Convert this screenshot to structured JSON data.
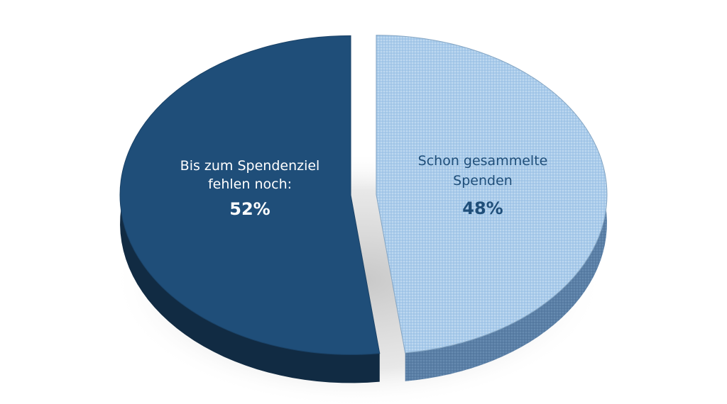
{
  "chart_data": {
    "type": "pie",
    "style": "3d-exploded",
    "slices": [
      {
        "label_lines": [
          "Bis zum Spendenziel",
          "fehlen noch:"
        ],
        "value_label": "52%",
        "value": 52,
        "color": "#1f4e79",
        "text_color": "#ffffff"
      },
      {
        "label_lines": [
          "Schon gesammelte",
          "Spenden"
        ],
        "value_label": "48%",
        "value": 48,
        "color": "#9dc3e6",
        "text_color": "#1f4e79"
      }
    ]
  }
}
